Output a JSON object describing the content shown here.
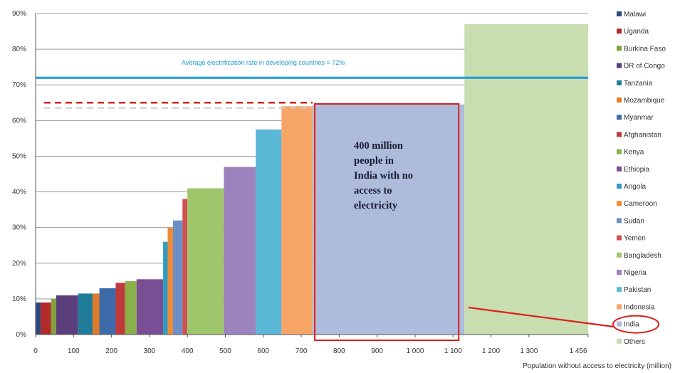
{
  "chart_data": {
    "type": "bar",
    "xlabel": "Population without access to electricity  (million)",
    "ylabel": "",
    "ylim": [
      0,
      90
    ],
    "xlim": [
      0,
      1456
    ],
    "y_ticks": [
      "0%",
      "10%",
      "20%",
      "30%",
      "40%",
      "50%",
      "60%",
      "70%",
      "80%",
      "90%"
    ],
    "x_ticks": [
      {
        "value": 0,
        "label": "0"
      },
      {
        "value": 100,
        "label": "100"
      },
      {
        "value": 200,
        "label": "200"
      },
      {
        "value": 300,
        "label": "300"
      },
      {
        "value": 400,
        "label": "400"
      },
      {
        "value": 500,
        "label": "500"
      },
      {
        "value": 600,
        "label": "600"
      },
      {
        "value": 700,
        "label": "700"
      },
      {
        "value": 800,
        "label": "800"
      },
      {
        "value": 900,
        "label": "900"
      },
      {
        "value": 1000,
        "label": "1 000"
      },
      {
        "value": 1100,
        "label": "1 100"
      },
      {
        "value": 1200,
        "label": "1 200"
      },
      {
        "value": 1300,
        "label": "1 300"
      },
      {
        "value": 1456,
        "label": "1 456"
      }
    ],
    "grid": true,
    "series": [
      {
        "name": "Malawi",
        "x_start": 0,
        "x_end": 13,
        "value": 9,
        "color": "#2a4a7f"
      },
      {
        "name": "Uganda",
        "x_start": 13,
        "x_end": 41,
        "value": 9,
        "color": "#b22b2b"
      },
      {
        "name": "Burkina Faso",
        "x_start": 41,
        "x_end": 54,
        "value": 10,
        "color": "#7fa33a"
      },
      {
        "name": "DR of Congo",
        "x_start": 54,
        "x_end": 112,
        "value": 11,
        "color": "#5b3f7a"
      },
      {
        "name": "Tanzania",
        "x_start": 112,
        "x_end": 150,
        "value": 11.5,
        "color": "#1f7d9a"
      },
      {
        "name": "Mozambique",
        "x_start": 150,
        "x_end": 168,
        "value": 11.5,
        "color": "#e07b2a"
      },
      {
        "name": "Myanmar",
        "x_start": 168,
        "x_end": 211,
        "value": 13,
        "color": "#3d6aa8"
      },
      {
        "name": "Afghanistan",
        "x_start": 211,
        "x_end": 236,
        "value": 14.5,
        "color": "#c0393b"
      },
      {
        "name": "Kenya",
        "x_start": 236,
        "x_end": 266,
        "value": 15,
        "color": "#8bb04a"
      },
      {
        "name": "Ethiopia",
        "x_start": 266,
        "x_end": 336,
        "value": 15.5,
        "color": "#7a4e94"
      },
      {
        "name": "Angola",
        "x_start": 336,
        "x_end": 348,
        "value": 26,
        "color": "#2e9cc1"
      },
      {
        "name": "Cameroon",
        "x_start": 348,
        "x_end": 362,
        "value": 30,
        "color": "#f08a36"
      },
      {
        "name": "Sudan",
        "x_start": 362,
        "x_end": 387,
        "value": 32,
        "color": "#6d8fc7"
      },
      {
        "name": "Yemen",
        "x_start": 387,
        "x_end": 400,
        "value": 38,
        "color": "#cf5050"
      },
      {
        "name": "Bangladesh",
        "x_start": 400,
        "x_end": 496,
        "value": 41,
        "color": "#9ec66a"
      },
      {
        "name": "Nigeria",
        "x_start": 496,
        "x_end": 580,
        "value": 47,
        "color": "#9d83bd"
      },
      {
        "name": "Pakistan",
        "x_start": 580,
        "x_end": 648,
        "value": 57.5,
        "color": "#5bb7d6"
      },
      {
        "name": "Indonesia",
        "x_start": 648,
        "x_end": 730,
        "value": 64,
        "color": "#f7a467"
      },
      {
        "name": "India",
        "x_start": 730,
        "x_end": 1130,
        "value": 64.5,
        "color": "#adbcdb"
      },
      {
        "name": "Others",
        "x_start": 1130,
        "x_end": 1456,
        "value": 87,
        "color": "#c8ddb0"
      }
    ],
    "reference_lines": [
      {
        "label": "Average electrification rate in developing    countries = 72%",
        "value": 72,
        "color": "#1e9bd7",
        "style": "solid"
      },
      {
        "label": "",
        "value": 65,
        "color": "#d9211e",
        "style": "dashed"
      },
      {
        "label": "",
        "value": 63.5,
        "color": "#cccccc",
        "style": "dashed"
      }
    ],
    "annotation": {
      "lines": [
        "400 million",
        "people in",
        "India with no",
        "access to",
        "electricity"
      ],
      "target": "India",
      "color": "#d9211e"
    },
    "legend_position": "right"
  }
}
